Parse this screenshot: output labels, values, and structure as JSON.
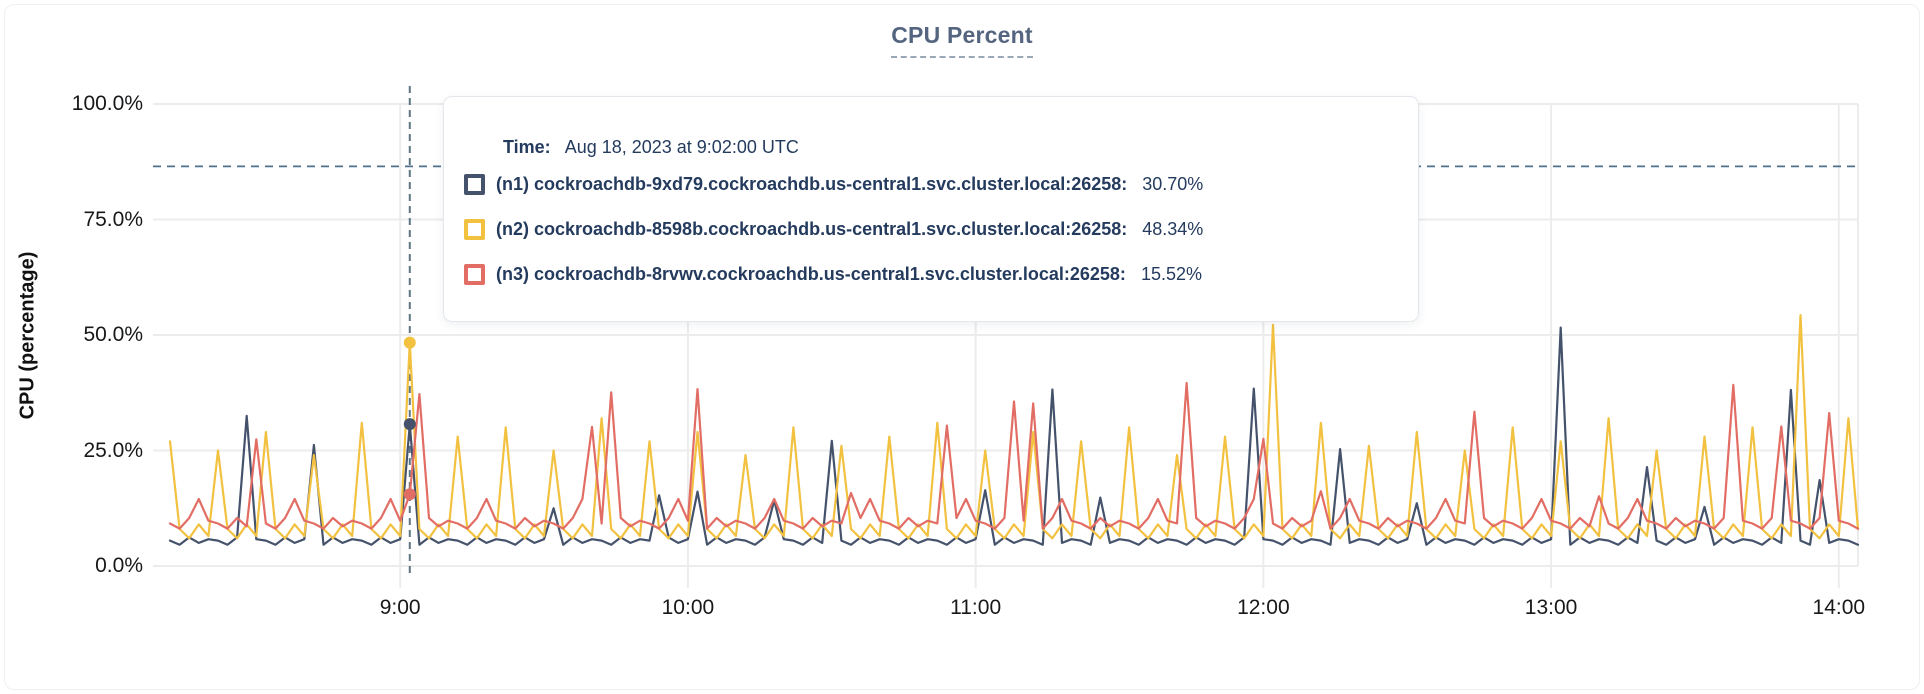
{
  "title": {
    "text": "CPU Percent"
  },
  "y_axis": {
    "label": "CPU (percentage)"
  },
  "tooltip": {
    "time_label": "Time:",
    "time_value": "Aug 18, 2023 at 9:02:00 UTC",
    "rows": [
      {
        "name": "(n1) cockroachdb-9xd79.cockroachdb.us-central1.svc.cluster.local:26258:",
        "value": "30.70%",
        "color": "#44526b"
      },
      {
        "name": "(n2) cockroachdb-8598b.cockroachdb.us-central1.svc.cluster.local:26258:",
        "value": "48.34%",
        "color": "#f2c140"
      },
      {
        "name": "(n3) cockroachdb-8rvwv.cockroachdb.us-central1.svc.cluster.local:26258:",
        "value": "15.52%",
        "color": "#e26d64"
      }
    ]
  },
  "colors": {
    "grid": "#ececec",
    "crosshair": "#5c7584",
    "threshold": "#50708a",
    "title_text": "#55657f",
    "tooltip_text": "#243b5e"
  },
  "chart_data": {
    "type": "line",
    "title": "CPU Percent",
    "ylabel": "CPU (percentage)",
    "ylim": [
      0,
      100
    ],
    "y_ticks": [
      {
        "pct": 0,
        "label": "0.0%"
      },
      {
        "pct": 25,
        "label": "25.0%"
      },
      {
        "pct": 50,
        "label": "50.0%"
      },
      {
        "pct": 75,
        "label": "75.0%"
      },
      {
        "pct": 100,
        "label": "100.0%"
      }
    ],
    "x_start_minutes": 492,
    "x_step_minutes": 2,
    "x_ticks": [
      {
        "label": "9:00",
        "minutes": 540
      },
      {
        "label": "10:00",
        "minutes": 600
      },
      {
        "label": "11:00",
        "minutes": 660
      },
      {
        "label": "12:00",
        "minutes": 720
      },
      {
        "label": "13:00",
        "minutes": 780
      },
      {
        "label": "14:00",
        "minutes": 840
      }
    ],
    "grid": true,
    "threshold_pct": 86.5,
    "hover": {
      "minutes": 542,
      "time": "Aug 18, 2023 at 9:02:00 UTC",
      "points": [
        {
          "series": "n1",
          "pct": 30.7
        },
        {
          "series": "n2",
          "pct": 48.34
        },
        {
          "series": "n3",
          "pct": 15.52
        }
      ]
    },
    "series": [
      {
        "name": "(n1) cockroachdb-9xd79.cockroachdb.us-central1.svc.cluster.local:26258",
        "color": "#44526b",
        "values": [
          5.5,
          4.6,
          6.2,
          5,
          5.8,
          5.5,
          4.6,
          6.2,
          32.5,
          5.8,
          5.5,
          4.6,
          6.2,
          5,
          5.8,
          26.2,
          4.6,
          6.2,
          5,
          5.8,
          5.5,
          4.6,
          6.2,
          5,
          5.8,
          30.7,
          4.6,
          6.2,
          5,
          5.8,
          5.5,
          4.6,
          6.2,
          5,
          5.8,
          5.5,
          4.6,
          6.2,
          5,
          5.8,
          12.5,
          4.6,
          6.2,
          5,
          5.8,
          5.5,
          4.6,
          6.2,
          5,
          5.8,
          5.5,
          15.3,
          6.2,
          5,
          5.8,
          16.1,
          4.6,
          6.2,
          5,
          5.8,
          5.5,
          4.6,
          6.2,
          14.2,
          5.8,
          5.5,
          4.6,
          6.2,
          5,
          27.1,
          5.5,
          4.6,
          6.2,
          5,
          5.8,
          5.5,
          4.6,
          6.2,
          5,
          5.8,
          5.5,
          4.6,
          6.2,
          5,
          5.8,
          16.4,
          4.6,
          6.2,
          5,
          5.8,
          5.5,
          4.6,
          38.2,
          5,
          5.8,
          5.5,
          4.6,
          14.8,
          5,
          5.8,
          5.5,
          4.6,
          6.2,
          5,
          5.8,
          5.5,
          4.6,
          6.2,
          5,
          5.8,
          5.5,
          4.6,
          6.2,
          38.4,
          5.8,
          5.5,
          4.6,
          6.2,
          5,
          5.8,
          5.5,
          4.6,
          25.3,
          5,
          5.8,
          5.5,
          4.6,
          6.2,
          5,
          5.8,
          13.6,
          4.6,
          6.2,
          5,
          5.8,
          5.5,
          4.6,
          6.2,
          5,
          5.8,
          5.5,
          4.6,
          6.2,
          5,
          5.8,
          51.6,
          4.6,
          6.2,
          5,
          5.8,
          5.5,
          4.6,
          6.2,
          5,
          21.4,
          5.5,
          4.6,
          6.2,
          5,
          5.8,
          12.8,
          4.6,
          6.2,
          5,
          5.8,
          5.5,
          4.6,
          6.2,
          5,
          38.1,
          5.5,
          4.6,
          18.6,
          5,
          5.8,
          5.5,
          4.6
        ]
      },
      {
        "name": "(n2) cockroachdb-8598b.cockroachdb.us-central1.svc.cluster.local:26258",
        "color": "#f2c140",
        "values": [
          27,
          8,
          6,
          9,
          6.5,
          25,
          8,
          6,
          9,
          6.5,
          29,
          8,
          6,
          9,
          6.5,
          24,
          8,
          6,
          9,
          6.5,
          31,
          8,
          6,
          9,
          6.5,
          48.34,
          8,
          6,
          9,
          6.5,
          28,
          8,
          6,
          9,
          6.5,
          30,
          8,
          6,
          9,
          6.5,
          25,
          8,
          6,
          9,
          6.5,
          32,
          8,
          6,
          9,
          6.5,
          27,
          8,
          6,
          9,
          6.5,
          29,
          8,
          6,
          9,
          6.5,
          24,
          8,
          6,
          9,
          6.5,
          30,
          8,
          6,
          9,
          6.5,
          26,
          8,
          6,
          9,
          6.5,
          28,
          8,
          6,
          9,
          6.5,
          31,
          8,
          6,
          9,
          6.5,
          25,
          8,
          6,
          9,
          6.5,
          29,
          8,
          6,
          9,
          6.5,
          27,
          8,
          6,
          9,
          6.5,
          30,
          8,
          6,
          9,
          6.5,
          24,
          8,
          6,
          9,
          6.5,
          28,
          8,
          6,
          9,
          6.5,
          52.2,
          8,
          6,
          9,
          6.5,
          31,
          8,
          6,
          9,
          6.5,
          26,
          8,
          6,
          9,
          6.5,
          29,
          8,
          6,
          9,
          6.5,
          25,
          8,
          6,
          9,
          6.5,
          30,
          8,
          6,
          9,
          6.5,
          27,
          8,
          6,
          9,
          6.5,
          32,
          8,
          6,
          9,
          6.5,
          25,
          8,
          6,
          9,
          6.5,
          28,
          8,
          6,
          9,
          6.5,
          30,
          8,
          6,
          9,
          6.5,
          54.3,
          8,
          6,
          9,
          6.5,
          32,
          8
        ]
      },
      {
        "name": "(n3) cockroachdb-8rvwv.cockroachdb.us-central1.svc.cluster.local:26258",
        "color": "#e26d64",
        "values": [
          9.2,
          8.1,
          10.4,
          14.5,
          9.8,
          9.2,
          8.1,
          10.4,
          8.6,
          27.4,
          9.2,
          8.1,
          10.4,
          14.5,
          9.8,
          9.2,
          8.1,
          10.4,
          8.6,
          9.8,
          9.2,
          8.1,
          10.4,
          14.5,
          9.8,
          15.52,
          37.2,
          10.4,
          8.6,
          9.8,
          9.2,
          8.1,
          10.4,
          14.5,
          9.8,
          9.2,
          8.1,
          10.4,
          8.6,
          9.8,
          9.2,
          8.1,
          10.4,
          14.5,
          30.1,
          9.2,
          37.6,
          10.4,
          8.6,
          9.8,
          9.2,
          8.1,
          10.4,
          14.5,
          9.8,
          38.3,
          8.1,
          10.4,
          8.6,
          9.8,
          9.2,
          8.1,
          10.4,
          14.5,
          9.8,
          9.2,
          8.1,
          10.4,
          8.6,
          9.8,
          9.2,
          15.8,
          10.4,
          14.5,
          9.8,
          9.2,
          8.1,
          10.4,
          8.6,
          9.8,
          9.2,
          30.4,
          10.4,
          14.5,
          9.8,
          9.2,
          8.1,
          10.4,
          35.6,
          9.8,
          35.2,
          8.1,
          10.4,
          14.5,
          9.8,
          9.2,
          8.1,
          10.4,
          8.6,
          9.8,
          9.2,
          8.1,
          10.4,
          14.5,
          9.8,
          9.2,
          39.6,
          10.4,
          8.6,
          9.8,
          9.2,
          8.1,
          10.4,
          14.5,
          27.5,
          9.2,
          8.1,
          10.4,
          8.6,
          9.8,
          16.2,
          8.1,
          10.4,
          14.5,
          9.8,
          9.2,
          8.1,
          10.4,
          8.6,
          9.8,
          9.2,
          8.1,
          10.4,
          14.5,
          9.8,
          9.2,
          33.4,
          10.4,
          8.6,
          9.8,
          9.2,
          8.1,
          10.4,
          14.5,
          9.8,
          9.2,
          8.1,
          10.4,
          8.6,
          15.1,
          9.2,
          8.1,
          10.4,
          14.5,
          9.8,
          9.2,
          8.1,
          10.4,
          8.6,
          9.8,
          9.2,
          8.1,
          10.4,
          39.2,
          9.8,
          9.2,
          8.1,
          10.4,
          30.2,
          9.8,
          9.2,
          8.1,
          10.4,
          33.1,
          9.8,
          9.2,
          8.1
        ]
      }
    ]
  }
}
